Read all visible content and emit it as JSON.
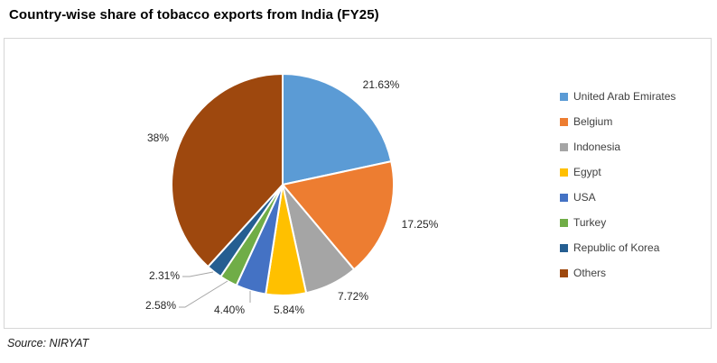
{
  "header": {
    "title": "Country-wise share of tobacco exports from India (FY25)"
  },
  "footer": {
    "source": "Source: NIRYAT"
  },
  "chart_data": {
    "type": "pie",
    "title": "Country-wise share of tobacco exports from India (FY25)",
    "legend_position": "right",
    "start_angle_deg": 0,
    "direction": "clockwise",
    "slice_border_color": "#ffffff",
    "leader_line_color": "#a6a6a6",
    "slices": [
      {
        "name": "United Arab Emirates",
        "value": 21.63,
        "label": "21.63%",
        "color": "#5B9BD5"
      },
      {
        "name": "Belgium",
        "value": 17.25,
        "label": "17.25%",
        "color": "#ED7D31"
      },
      {
        "name": "Indonesia",
        "value": 7.72,
        "label": "7.72%",
        "color": "#A5A5A5"
      },
      {
        "name": "Egypt",
        "value": 5.84,
        "label": "5.84%",
        "color": "#FFC000"
      },
      {
        "name": "USA",
        "value": 4.4,
        "label": "4.40%",
        "color": "#4472C4"
      },
      {
        "name": "Turkey",
        "value": 2.58,
        "label": "2.58%",
        "color": "#70AD47"
      },
      {
        "name": "Republic of Korea",
        "value": 2.31,
        "label": "2.31%",
        "color": "#255E91"
      },
      {
        "name": "Others",
        "value": 38.27,
        "label": "38%",
        "color": "#9E480E"
      }
    ]
  }
}
